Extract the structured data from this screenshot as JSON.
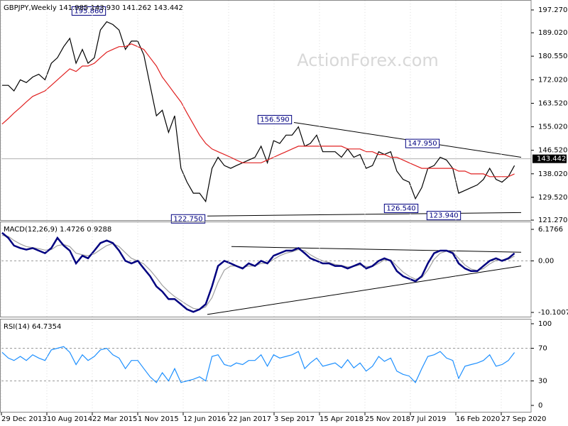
{
  "chart_data": [
    {
      "type": "line",
      "title": "GBPJPY,Weekly  141.985 143.930 141.262 143.442",
      "watermark": "ActionForex.com",
      "xlim": [
        "2013-12-29",
        "2021-02-21"
      ],
      "ylim": [
        121.02,
        200.61
      ],
      "yticks": [
        {
          "value": 197.27,
          "label": "197.270"
        },
        {
          "value": 189.02,
          "label": "189.020"
        },
        {
          "value": 180.55,
          "label": "180.550"
        },
        {
          "value": 172.02,
          "label": "172.020"
        },
        {
          "value": 163.52,
          "label": "163.520"
        },
        {
          "value": 155.02,
          "label": "155.020"
        },
        {
          "value": 146.52,
          "label": "146.520"
        },
        {
          "value": 138.02,
          "label": "138.020"
        },
        {
          "value": 129.52,
          "label": "129.520"
        },
        {
          "value": 121.27,
          "label": "121.270"
        }
      ],
      "last_price": {
        "value": 143.442,
        "label": "143.442"
      },
      "x": [
        "2014-01",
        "2014-02",
        "2014-03",
        "2014-04",
        "2014-05",
        "2014-06",
        "2014-07",
        "2014-08",
        "2014-09",
        "2014-10",
        "2014-11",
        "2014-12",
        "2015-01",
        "2015-02",
        "2015-03",
        "2015-04",
        "2015-05",
        "2015-06",
        "2015-07",
        "2015-08",
        "2015-09",
        "2015-10",
        "2015-11",
        "2015-12",
        "2016-01",
        "2016-02",
        "2016-03",
        "2016-04",
        "2016-05",
        "2016-06",
        "2016-07",
        "2016-08",
        "2016-09",
        "2016-10",
        "2016-11",
        "2016-12",
        "2017-01",
        "2017-02",
        "2017-03",
        "2017-04",
        "2017-05",
        "2017-06",
        "2017-07",
        "2017-08",
        "2017-09",
        "2017-10",
        "2017-11",
        "2017-12",
        "2018-01",
        "2018-02",
        "2018-03",
        "2018-04",
        "2018-05",
        "2018-06",
        "2018-07",
        "2018-08",
        "2018-09",
        "2018-10",
        "2018-11",
        "2018-12",
        "2019-01",
        "2019-02",
        "2019-03",
        "2019-04",
        "2019-05",
        "2019-06",
        "2019-07",
        "2019-08",
        "2019-09",
        "2019-10",
        "2019-11",
        "2019-12",
        "2020-01",
        "2020-02",
        "2020-03",
        "2020-04",
        "2020-05",
        "2020-06",
        "2020-07",
        "2020-08",
        "2020-09",
        "2020-10",
        "2020-11",
        "2020-12"
      ],
      "series": [
        {
          "color": "#000000",
          "values": [
            170,
            170,
            168,
            172,
            171,
            173,
            174,
            172,
            178,
            180,
            184,
            187,
            178,
            183,
            178,
            180,
            190,
            193,
            192,
            190,
            183,
            186,
            186,
            181,
            170,
            159,
            161,
            153,
            159,
            140,
            135,
            131,
            131,
            128,
            140,
            144,
            141,
            140,
            141,
            142,
            143,
            144,
            148,
            142,
            150,
            149,
            152,
            152,
            155,
            148,
            149,
            152,
            146,
            146,
            146,
            144,
            147,
            144,
            145,
            140,
            141,
            146,
            145,
            146,
            139,
            136,
            135,
            129,
            133,
            140,
            141,
            144,
            143,
            140,
            131,
            132,
            133,
            134,
            136,
            140,
            136,
            135,
            137,
            141
          ]
        },
        {
          "color": "#e02020",
          "values": [
            156,
            158,
            160,
            162,
            164,
            166,
            167,
            168,
            170,
            172,
            174,
            176,
            175,
            177,
            177,
            178,
            180,
            182,
            183,
            184,
            184,
            185,
            184,
            183,
            180,
            177,
            173,
            170,
            167,
            164,
            160,
            156,
            152,
            149,
            147,
            146,
            145,
            144,
            143,
            142,
            142,
            142,
            142,
            143,
            144,
            145,
            146,
            147,
            148,
            148,
            148,
            148,
            148,
            148,
            148,
            148,
            147,
            147,
            147,
            146,
            146,
            145,
            145,
            144,
            144,
            143,
            142,
            141,
            140,
            140,
            140,
            140,
            140,
            140,
            139,
            139,
            138,
            138,
            138,
            137,
            137,
            137,
            137,
            138
          ]
        }
      ],
      "trendlines": [
        {
          "x": [
            "2017-12-10",
            "2021-01-03"
          ],
          "values": [
            156.59,
            144.0
          ]
        },
        {
          "x": [
            "2016-10-09",
            "2021-01-03"
          ],
          "values": [
            122.75,
            124.0
          ]
        }
      ],
      "high_labels": [
        {
          "x": "2015-06-07",
          "value": 195.86,
          "label": "195.860"
        },
        {
          "x": "2017-12-10",
          "value": 156.59,
          "label": "156.590"
        },
        {
          "x": "2019-12-08",
          "value": 147.95,
          "label": "147.950"
        }
      ],
      "low_labels": [
        {
          "x": "2016-10-09",
          "value": 122.75,
          "label": "122.750"
        },
        {
          "x": "2019-08-25",
          "value": 126.54,
          "label": "126.540"
        },
        {
          "x": "2020-03-22",
          "value": 123.94,
          "label": "123.940"
        }
      ]
    },
    {
      "type": "line",
      "title": "MACD(12,26,9) 1.4726 0.9288",
      "xlim": [
        "2013-12-29",
        "2021-02-21"
      ],
      "ylim": [
        -11.07,
        7.57
      ],
      "yticks": [
        6.1766,
        {
          "value": 0,
          "label": "0.00"
        },
        -10.1007
      ],
      "levels": [
        0
      ],
      "x": [
        "2014-01",
        "2014-02",
        "2014-03",
        "2014-04",
        "2014-05",
        "2014-06",
        "2014-07",
        "2014-08",
        "2014-09",
        "2014-10",
        "2014-11",
        "2014-12",
        "2015-01",
        "2015-02",
        "2015-03",
        "2015-04",
        "2015-05",
        "2015-06",
        "2015-07",
        "2015-08",
        "2015-09",
        "2015-10",
        "2015-11",
        "2015-12",
        "2016-01",
        "2016-02",
        "2016-03",
        "2016-04",
        "2016-05",
        "2016-06",
        "2016-07",
        "2016-08",
        "2016-09",
        "2016-10",
        "2016-11",
        "2016-12",
        "2017-01",
        "2017-02",
        "2017-03",
        "2017-04",
        "2017-05",
        "2017-06",
        "2017-07",
        "2017-08",
        "2017-09",
        "2017-10",
        "2017-11",
        "2017-12",
        "2018-01",
        "2018-02",
        "2018-03",
        "2018-04",
        "2018-05",
        "2018-06",
        "2018-07",
        "2018-08",
        "2018-09",
        "2018-10",
        "2018-11",
        "2018-12",
        "2019-01",
        "2019-02",
        "2019-03",
        "2019-04",
        "2019-05",
        "2019-06",
        "2019-07",
        "2019-08",
        "2019-09",
        "2019-10",
        "2019-11",
        "2019-12",
        "2020-01",
        "2020-02",
        "2020-03",
        "2020-04",
        "2020-05",
        "2020-06",
        "2020-07",
        "2020-08",
        "2020-09",
        "2020-10",
        "2020-11",
        "2020-12"
      ],
      "series": [
        {
          "color": "#a0a0a0",
          "values": [
            5.0,
            4.8,
            4.0,
            3.3,
            2.8,
            2.6,
            2.4,
            2.1,
            2.2,
            3.0,
            3.2,
            2.8,
            1.5,
            1.2,
            1.0,
            1.4,
            2.2,
            3.0,
            3.4,
            2.8,
            1.6,
            0.5,
            0.0,
            -0.6,
            -1.8,
            -3.3,
            -4.8,
            -6.0,
            -7.0,
            -7.8,
            -8.6,
            -9.3,
            -9.5,
            -9.0,
            -7.2,
            -4.2,
            -1.8,
            -1.0,
            -1.0,
            -1.3,
            -1.0,
            -1.0,
            -0.5,
            -0.5,
            0.3,
            1.0,
            1.5,
            1.8,
            2.2,
            2.0,
            1.2,
            0.5,
            0.0,
            -0.3,
            -0.7,
            -0.9,
            -1.2,
            -1.1,
            -0.8,
            -1.1,
            -1.1,
            -0.5,
            0.2,
            0.2,
            -1.0,
            -2.2,
            -3.0,
            -3.6,
            -3.3,
            -1.8,
            0.3,
            1.5,
            1.9,
            1.7,
            0.5,
            -0.8,
            -1.6,
            -1.9,
            -1.5,
            -0.6,
            0.1,
            0.2,
            0.3,
            0.9288
          ]
        },
        {
          "color": "#000080",
          "values": [
            5.5,
            4.5,
            3.0,
            2.5,
            2.2,
            2.5,
            2.0,
            1.5,
            2.5,
            4.5,
            3.0,
            2.0,
            -0.5,
            1.0,
            0.5,
            2.0,
            3.5,
            4.0,
            3.5,
            2.0,
            0.0,
            -0.5,
            0.0,
            -1.5,
            -3.0,
            -5.0,
            -6.0,
            -7.5,
            -7.5,
            -8.5,
            -9.5,
            -10.0,
            -9.5,
            -8.5,
            -5.0,
            -1.0,
            0.0,
            -0.5,
            -1.0,
            -1.5,
            -0.5,
            -1.0,
            0.0,
            -0.5,
            1.0,
            1.5,
            2.0,
            2.0,
            2.5,
            1.5,
            0.5,
            0.0,
            -0.5,
            -0.5,
            -1.0,
            -1.0,
            -1.5,
            -1.0,
            -0.5,
            -1.5,
            -1.0,
            0.0,
            0.5,
            0.0,
            -2.0,
            -3.0,
            -3.5,
            -4.0,
            -3.0,
            -0.5,
            1.5,
            2.0,
            2.0,
            1.5,
            -0.5,
            -1.5,
            -2.0,
            -2.0,
            -1.0,
            0.0,
            0.5,
            0.0,
            0.5,
            1.4726
          ]
        }
      ],
      "trendlines": [
        {
          "x": [
            "2016-10-09",
            "2021-01-03"
          ],
          "values": [
            -10.5,
            -1.0
          ]
        },
        {
          "x": [
            "2017-02-05",
            "2021-01-03"
          ],
          "values": [
            2.8,
            1.7
          ]
        }
      ]
    },
    {
      "type": "line",
      "title": "RSI(14) 64.7354",
      "xlim": [
        "2013-12-29",
        "2021-02-21"
      ],
      "ylim": [
        -8.7,
        105.2
      ],
      "yticks": [
        100,
        70,
        30,
        0
      ],
      "levels": [
        70,
        30
      ],
      "xticks": [
        {
          "value": "2013-12-29",
          "label": "29 Dec 2013"
        },
        {
          "value": "2014-08-10",
          "label": "10 Aug 2014"
        },
        {
          "value": "2015-03-22",
          "label": "22 Mar 2015"
        },
        {
          "value": "2015-11-01",
          "label": "1 Nov 2015"
        },
        {
          "value": "2016-06-12",
          "label": "12 Jun 2016"
        },
        {
          "value": "2017-01-22",
          "label": "22 Jan 2017"
        },
        {
          "value": "2017-09-03",
          "label": "3 Sep 2017"
        },
        {
          "value": "2018-04-15",
          "label": "15 Apr 2018"
        },
        {
          "value": "2018-11-25",
          "label": "25 Nov 2018"
        },
        {
          "value": "2019-07-07",
          "label": "7 Jul 2019"
        },
        {
          "value": "2020-02-16",
          "label": "16 Feb 2020"
        },
        {
          "value": "2020-09-27",
          "label": "27 Sep 2020"
        }
      ],
      "x": [
        "2014-01",
        "2014-02",
        "2014-03",
        "2014-04",
        "2014-05",
        "2014-06",
        "2014-07",
        "2014-08",
        "2014-09",
        "2014-10",
        "2014-11",
        "2014-12",
        "2015-01",
        "2015-02",
        "2015-03",
        "2015-04",
        "2015-05",
        "2015-06",
        "2015-07",
        "2015-08",
        "2015-09",
        "2015-10",
        "2015-11",
        "2015-12",
        "2016-01",
        "2016-02",
        "2016-03",
        "2016-04",
        "2016-05",
        "2016-06",
        "2016-07",
        "2016-08",
        "2016-09",
        "2016-10",
        "2016-11",
        "2016-12",
        "2017-01",
        "2017-02",
        "2017-03",
        "2017-04",
        "2017-05",
        "2017-06",
        "2017-07",
        "2017-08",
        "2017-09",
        "2017-10",
        "2017-11",
        "2017-12",
        "2018-01",
        "2018-02",
        "2018-03",
        "2018-04",
        "2018-05",
        "2018-06",
        "2018-07",
        "2018-08",
        "2018-09",
        "2018-10",
        "2018-11",
        "2018-12",
        "2019-01",
        "2019-02",
        "2019-03",
        "2019-04",
        "2019-05",
        "2019-06",
        "2019-07",
        "2019-08",
        "2019-09",
        "2019-10",
        "2019-11",
        "2019-12",
        "2020-01",
        "2020-02",
        "2020-03",
        "2020-04",
        "2020-05",
        "2020-06",
        "2020-07",
        "2020-08",
        "2020-09",
        "2020-10",
        "2020-11",
        "2020-12"
      ],
      "series": [
        {
          "color": "#1e90ff",
          "values": [
            65,
            58,
            55,
            60,
            55,
            62,
            58,
            55,
            68,
            70,
            72,
            65,
            50,
            62,
            55,
            60,
            68,
            70,
            62,
            58,
            45,
            55,
            55,
            45,
            35,
            28,
            40,
            30,
            45,
            28,
            30,
            32,
            35,
            30,
            60,
            62,
            50,
            48,
            52,
            50,
            55,
            55,
            62,
            48,
            62,
            58,
            60,
            62,
            66,
            45,
            52,
            58,
            48,
            50,
            52,
            46,
            56,
            46,
            52,
            42,
            48,
            60,
            54,
            58,
            42,
            38,
            36,
            28,
            45,
            60,
            62,
            66,
            58,
            55,
            33,
            48,
            50,
            52,
            55,
            62,
            48,
            50,
            55,
            64.7354
          ]
        }
      ]
    }
  ]
}
